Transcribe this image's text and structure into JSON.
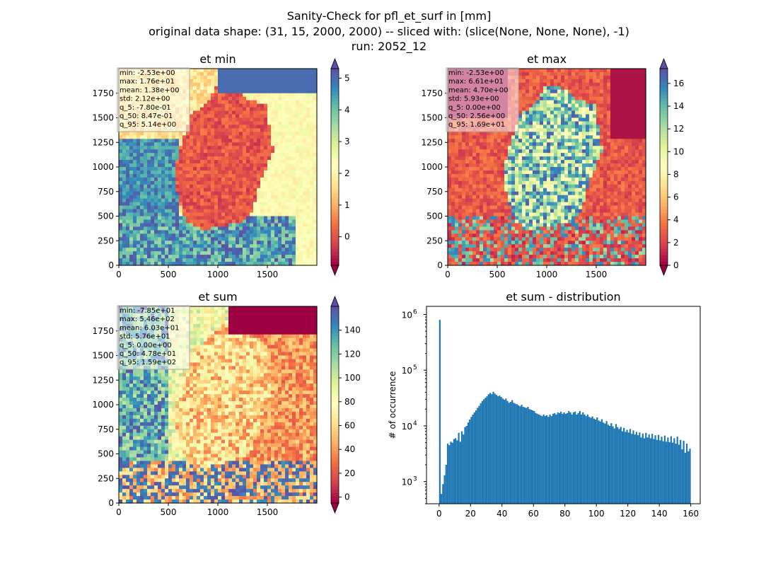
{
  "figure": {
    "suptitle_line1": "Sanity-Check for pfl_et_surf in [mm]",
    "suptitle_line2": "original data shape: (31, 15, 2000, 2000) -- sliced with: (slice(None, None, None), -1)",
    "suptitle_line3": "run: 2052_12"
  },
  "colors": {
    "colormap": "Spectral",
    "histogram_bar": "#1f77b4"
  },
  "chart_data": [
    {
      "type": "heatmap",
      "title": "et min",
      "xlim": [
        0,
        2000
      ],
      "ylim": [
        0,
        2000
      ],
      "x_ticks": [
        "0",
        "500",
        "1000",
        "1500"
      ],
      "y_ticks": [
        "0",
        "250",
        "500",
        "750",
        "1000",
        "1250",
        "1500",
        "1750"
      ],
      "colorbar": {
        "min": -0.9,
        "max": 5.3,
        "ticks": [
          "0",
          "1",
          "2",
          "3",
          "4",
          "5"
        ],
        "tick_values": [
          0,
          1,
          2,
          3,
          4,
          5
        ],
        "extend": "both"
      },
      "stats": [
        "min: -2.53e+00",
        "max: 1.76e+01",
        "mean: 1.38e+00",
        "std: 2.12e+00",
        "q_5: -7.80e-01",
        "q_50: 8.47e-01",
        "q_95: 5.14e+00"
      ]
    },
    {
      "type": "heatmap",
      "title": "et max",
      "xlim": [
        0,
        2000
      ],
      "ylim": [
        0,
        2000
      ],
      "x_ticks": [
        "0",
        "500",
        "1000",
        "1500"
      ],
      "y_ticks": [
        "0",
        "250",
        "500",
        "750",
        "1000",
        "1250",
        "1500",
        "1750"
      ],
      "colorbar": {
        "min": 0,
        "max": 17.3,
        "ticks": [
          "0",
          "2",
          "4",
          "6",
          "8",
          "10",
          "12",
          "14",
          "16"
        ],
        "tick_values": [
          0,
          2,
          4,
          6,
          8,
          10,
          12,
          14,
          16
        ],
        "extend": "both"
      },
      "stats": [
        "min: -2.53e+00",
        "max: 6.61e+01",
        "mean: 4.70e+00",
        "std: 5.93e+00",
        "q_5: 0.00e+00",
        "q_50: 2.56e+00",
        "q_95: 1.69e+01"
      ]
    },
    {
      "type": "heatmap",
      "title": "et sum",
      "xlim": [
        0,
        2000
      ],
      "ylim": [
        0,
        2000
      ],
      "x_ticks": [
        "0",
        "500",
        "1000",
        "1500"
      ],
      "y_ticks": [
        "0",
        "250",
        "500",
        "750",
        "1000",
        "1250",
        "1500",
        "1750"
      ],
      "colorbar": {
        "min": -5,
        "max": 160,
        "ticks": [
          "0",
          "20",
          "40",
          "60",
          "80",
          "100",
          "120",
          "140"
        ],
        "tick_values": [
          0,
          20,
          40,
          60,
          80,
          100,
          120,
          140
        ],
        "extend": "both"
      },
      "stats": [
        "min: -7.85e+01",
        "max: 5.46e+02",
        "mean: 6.03e+01",
        "std: 5.76e+01",
        "q_5: 0.00e+00",
        "q_50: 4.78e+01",
        "q_95: 1.59e+02"
      ]
    },
    {
      "type": "bar",
      "title": "et sum - distribution",
      "ylabel": "# of occurrence",
      "yscale": "log",
      "xlim": [
        -8,
        166
      ],
      "ylim": [
        400,
        1400000
      ],
      "x_ticks": [
        "0",
        "20",
        "40",
        "60",
        "80",
        "100",
        "120",
        "140",
        "160"
      ],
      "x_tick_values": [
        0,
        20,
        40,
        60,
        80,
        100,
        120,
        140,
        160
      ],
      "y_ticks": [
        "10",
        "10",
        "10",
        "10"
      ],
      "y_tick_exponents": [
        "3",
        "4",
        "5",
        "6"
      ],
      "y_tick_values": [
        1000,
        10000,
        100000,
        1000000
      ],
      "bin_width": 1,
      "x": [
        0,
        1,
        2,
        3,
        4,
        5,
        6,
        7,
        8,
        9,
        10,
        11,
        12,
        13,
        14,
        15,
        16,
        17,
        18,
        19,
        20,
        21,
        22,
        23,
        24,
        25,
        26,
        27,
        28,
        29,
        30,
        31,
        32,
        33,
        34,
        35,
        36,
        37,
        38,
        39,
        40,
        41,
        42,
        43,
        44,
        45,
        46,
        47,
        48,
        49,
        50,
        51,
        52,
        53,
        54,
        55,
        56,
        57,
        58,
        59,
        60,
        61,
        62,
        63,
        64,
        65,
        66,
        67,
        68,
        69,
        70,
        71,
        72,
        73,
        74,
        75,
        76,
        77,
        78,
        79,
        80,
        81,
        82,
        83,
        84,
        85,
        86,
        87,
        88,
        89,
        90,
        91,
        92,
        93,
        94,
        95,
        96,
        97,
        98,
        99,
        100,
        101,
        102,
        103,
        104,
        105,
        106,
        107,
        108,
        109,
        110,
        111,
        112,
        113,
        114,
        115,
        116,
        117,
        118,
        119,
        120,
        121,
        122,
        123,
        124,
        125,
        126,
        127,
        128,
        129,
        130,
        131,
        132,
        133,
        134,
        135,
        136,
        137,
        138,
        139,
        140,
        141,
        142,
        143,
        144,
        145,
        146,
        147,
        148,
        149,
        150,
        151,
        152,
        153,
        154,
        155,
        156,
        157,
        158,
        159
      ],
      "values": [
        800000,
        600,
        900,
        1300,
        2000,
        4800,
        4500,
        5200,
        5000,
        5800,
        6000,
        5500,
        7500,
        5200,
        8000,
        7000,
        9500,
        10000,
        11500,
        13000,
        14500,
        16000,
        17500,
        19000,
        21000,
        23000,
        25500,
        28000,
        30000,
        32000,
        34000,
        37000,
        39000,
        37000,
        41000,
        38000,
        36000,
        34000,
        35000,
        33000,
        31000,
        29500,
        31000,
        28000,
        26000,
        27000,
        29000,
        26000,
        25000,
        24500,
        23500,
        22500,
        24000,
        22000,
        21500,
        21000,
        22000,
        20000,
        19500,
        19000,
        18500,
        17000,
        16500,
        16000,
        15500,
        15000,
        16000,
        15000,
        15500,
        14500,
        16000,
        15000,
        16500,
        17000,
        16000,
        17500,
        17000,
        18000,
        16500,
        17500,
        16500,
        17000,
        18500,
        17500,
        16000,
        17500,
        18000,
        16000,
        17000,
        18500,
        16000,
        17500,
        16000,
        15000,
        16000,
        14500,
        14000,
        14800,
        13500,
        13000,
        14200,
        12500,
        12000,
        13200,
        11500,
        11000,
        12200,
        10500,
        10000,
        11200,
        9800,
        9000,
        10800,
        9500,
        8800,
        9600,
        8000,
        9200,
        7800,
        8500,
        7600,
        8800,
        7200,
        8300,
        7000,
        7800,
        6800,
        7600,
        6200,
        7300,
        6000,
        7500,
        6200,
        7000,
        6000,
        7200,
        5800,
        6800,
        5600,
        6900,
        5500,
        6400,
        5300,
        6700,
        5200,
        6200,
        5100,
        6500,
        5000,
        6000,
        4800,
        6400,
        4600,
        5600,
        3800,
        5400,
        3300,
        4800,
        3500,
        3900
      ]
    }
  ]
}
